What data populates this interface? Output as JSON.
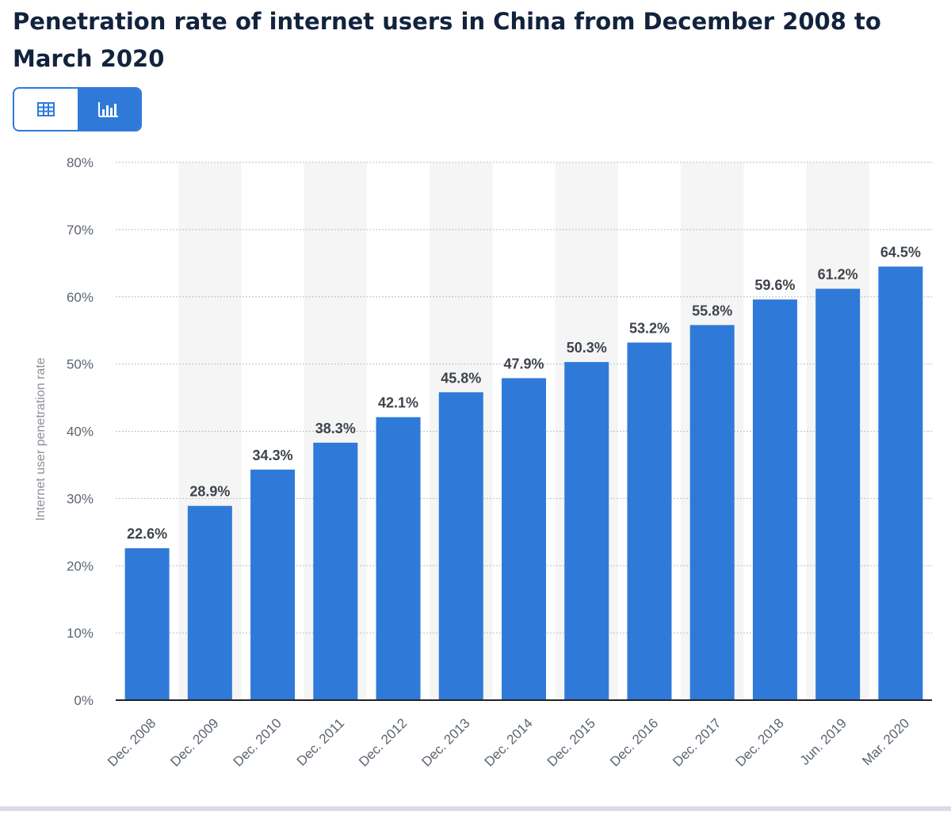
{
  "title": "Penetration rate of internet users in China from December 2008 to March 2020",
  "toggle": {
    "table_icon": "table-icon",
    "chart_icon": "bar-chart-icon",
    "active": "chart"
  },
  "colors": {
    "bar": "#2f7ad9",
    "title": "#12233d",
    "axis_text": "#5b6470",
    "label_text": "#3e444c",
    "band": "#f5f5f5",
    "grid": "#b9bec5"
  },
  "chart_data": {
    "type": "bar",
    "title": "Penetration rate of internet users in China from December 2008 to March 2020",
    "xlabel": "",
    "ylabel": "Internet user penetration rate",
    "ylim": [
      0,
      80
    ],
    "yticks": [
      "0%",
      "10%",
      "20%",
      "30%",
      "40%",
      "50%",
      "60%",
      "70%",
      "80%"
    ],
    "grid": true,
    "categories": [
      "Dec. 2008",
      "Dec. 2009",
      "Dec. 2010",
      "Dec. 2011",
      "Dec. 2012",
      "Dec. 2013",
      "Dec. 2014",
      "Dec. 2015",
      "Dec. 2016",
      "Dec. 2017",
      "Dec. 2018",
      "Jun. 2019",
      "Mar. 2020"
    ],
    "values": [
      22.6,
      28.9,
      34.3,
      38.3,
      42.1,
      45.8,
      47.9,
      50.3,
      53.2,
      55.8,
      59.6,
      61.2,
      64.5
    ],
    "value_labels": [
      "22.6%",
      "28.9%",
      "34.3%",
      "38.3%",
      "42.1%",
      "45.8%",
      "47.9%",
      "50.3%",
      "53.2%",
      "55.8%",
      "59.6%",
      "61.2%",
      "64.5%"
    ]
  }
}
